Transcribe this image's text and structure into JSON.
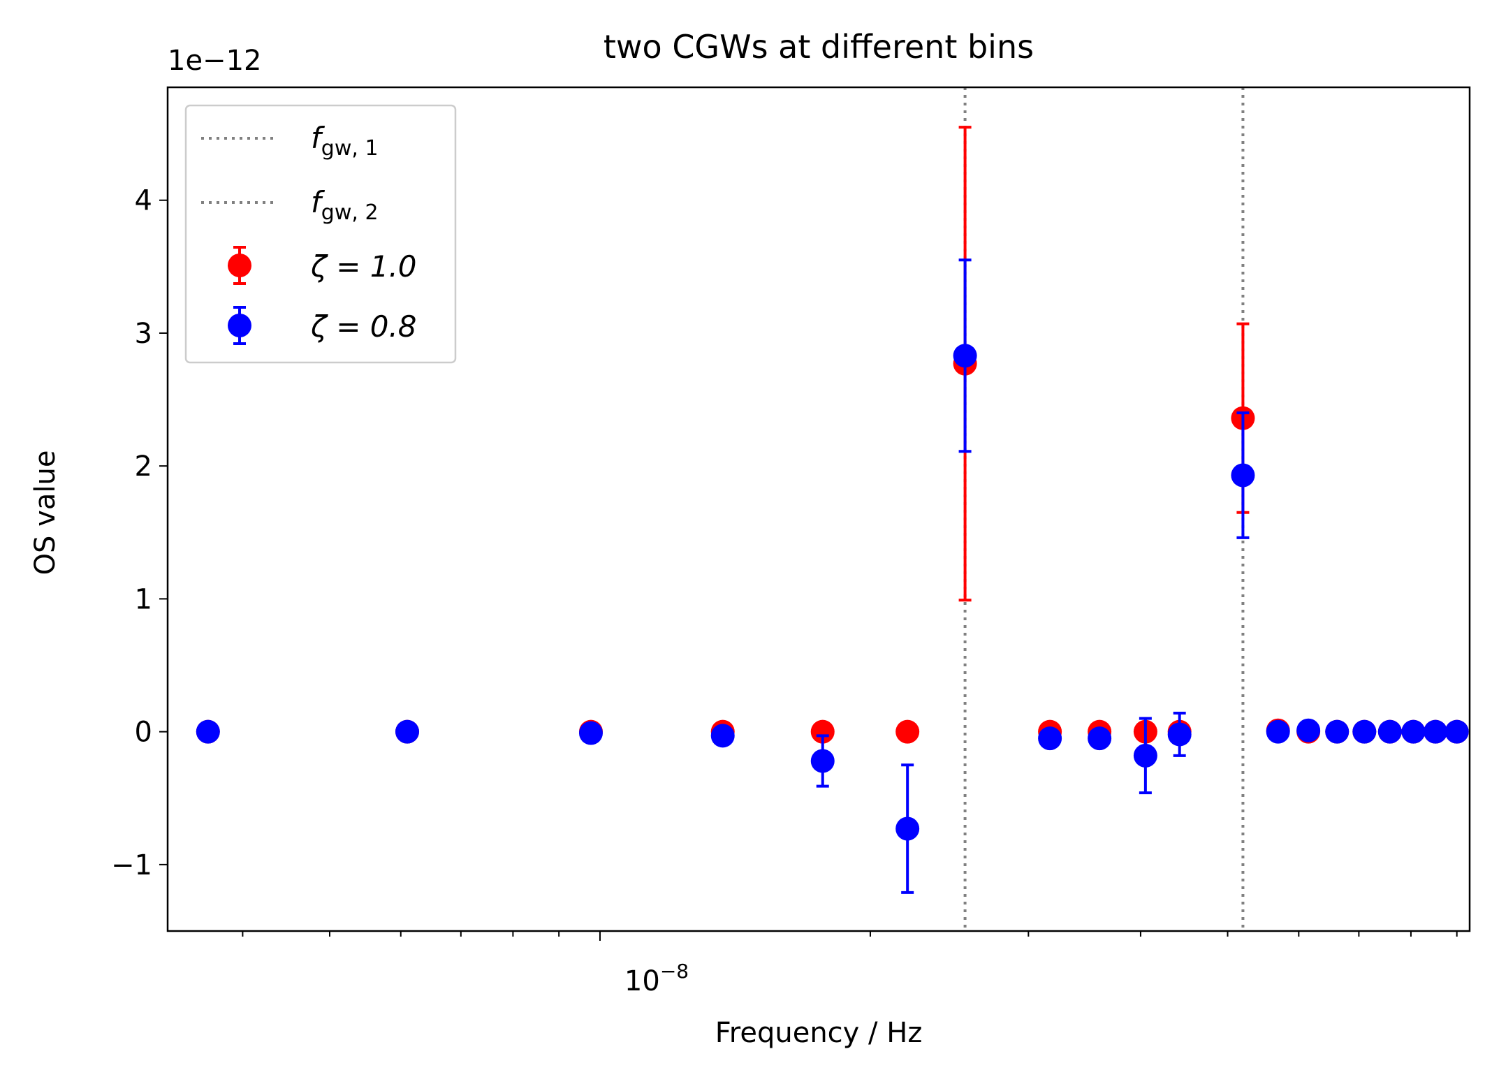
{
  "chart_data": {
    "type": "scatter",
    "title": "two CGWs at different bins",
    "xlabel": "Frequency / Hz",
    "ylabel": "OS value",
    "x_scale": "log",
    "xlim": [
      3.3e-09,
      9.3e-08
    ],
    "ylim": [
      -1.5,
      4.85
    ],
    "y_offset_label": "1e−12",
    "y_ticks": [
      -1,
      0,
      1,
      2,
      3,
      4
    ],
    "y_tick_labels": [
      "−1",
      "0",
      "1",
      "2",
      "3",
      "4"
    ],
    "x_major_tick": 1e-08,
    "x_major_tick_label": "10",
    "x_major_tick_exp": "−8",
    "vertical_lines": [
      {
        "x": 2.55e-08,
        "legend_main": "f",
        "legend_sub": "gw, 1",
        "color": "#808080"
      },
      {
        "x": 5.2e-08,
        "legend_main": "f",
        "legend_sub": "gw, 2",
        "color": "#808080"
      }
    ],
    "series": [
      {
        "name": "ζ = 1.0",
        "color": "#ff0000",
        "x": [
          3.66e-09,
          6.1e-09,
          9.77e-09,
          1.37e-08,
          1.77e-08,
          2.2e-08,
          2.55e-08,
          3.17e-08,
          3.6e-08,
          4.05e-08,
          4.42e-08,
          5.2e-08,
          5.69e-08,
          6.15e-08,
          6.62e-08,
          7.1e-08,
          7.58e-08,
          8.05e-08,
          8.52e-08,
          9e-08
        ],
        "y": [
          0.0,
          0.0,
          0.0,
          0.0,
          0.0,
          0.0,
          2.77,
          0.0,
          0.0,
          0.0,
          0.0,
          2.36,
          0.01,
          0.0,
          0.0,
          0.0,
          0.0,
          0.0,
          0.0,
          0.0
        ],
        "yerr": [
          0.0,
          0.0,
          0.0,
          0.0,
          0.0,
          0.0,
          1.78,
          0.0,
          0.0,
          0.0,
          0.0,
          0.71,
          0.0,
          0.0,
          0.0,
          0.0,
          0.0,
          0.0,
          0.0,
          0.0
        ]
      },
      {
        "name": "ζ = 0.8",
        "color": "#0000ff",
        "x": [
          3.66e-09,
          6.1e-09,
          9.77e-09,
          1.37e-08,
          1.77e-08,
          2.2e-08,
          2.55e-08,
          3.17e-08,
          3.6e-08,
          4.05e-08,
          4.42e-08,
          5.2e-08,
          5.69e-08,
          6.15e-08,
          6.62e-08,
          7.1e-08,
          7.58e-08,
          8.05e-08,
          8.52e-08,
          9e-08
        ],
        "y": [
          0.0,
          0.0,
          -0.01,
          -0.03,
          -0.22,
          -0.73,
          2.83,
          -0.05,
          -0.05,
          -0.18,
          -0.02,
          1.93,
          0.0,
          0.01,
          0.0,
          0.0,
          0.0,
          0.0,
          0.0,
          0.0
        ],
        "yerr": [
          0.0,
          0.0,
          0.0,
          0.0,
          0.19,
          0.48,
          0.72,
          0.0,
          0.0,
          0.28,
          0.16,
          0.47,
          0.0,
          0.0,
          0.0,
          0.0,
          0.0,
          0.0,
          0.0,
          0.0
        ]
      }
    ],
    "legend_placement": "upper-left",
    "grid": false
  }
}
